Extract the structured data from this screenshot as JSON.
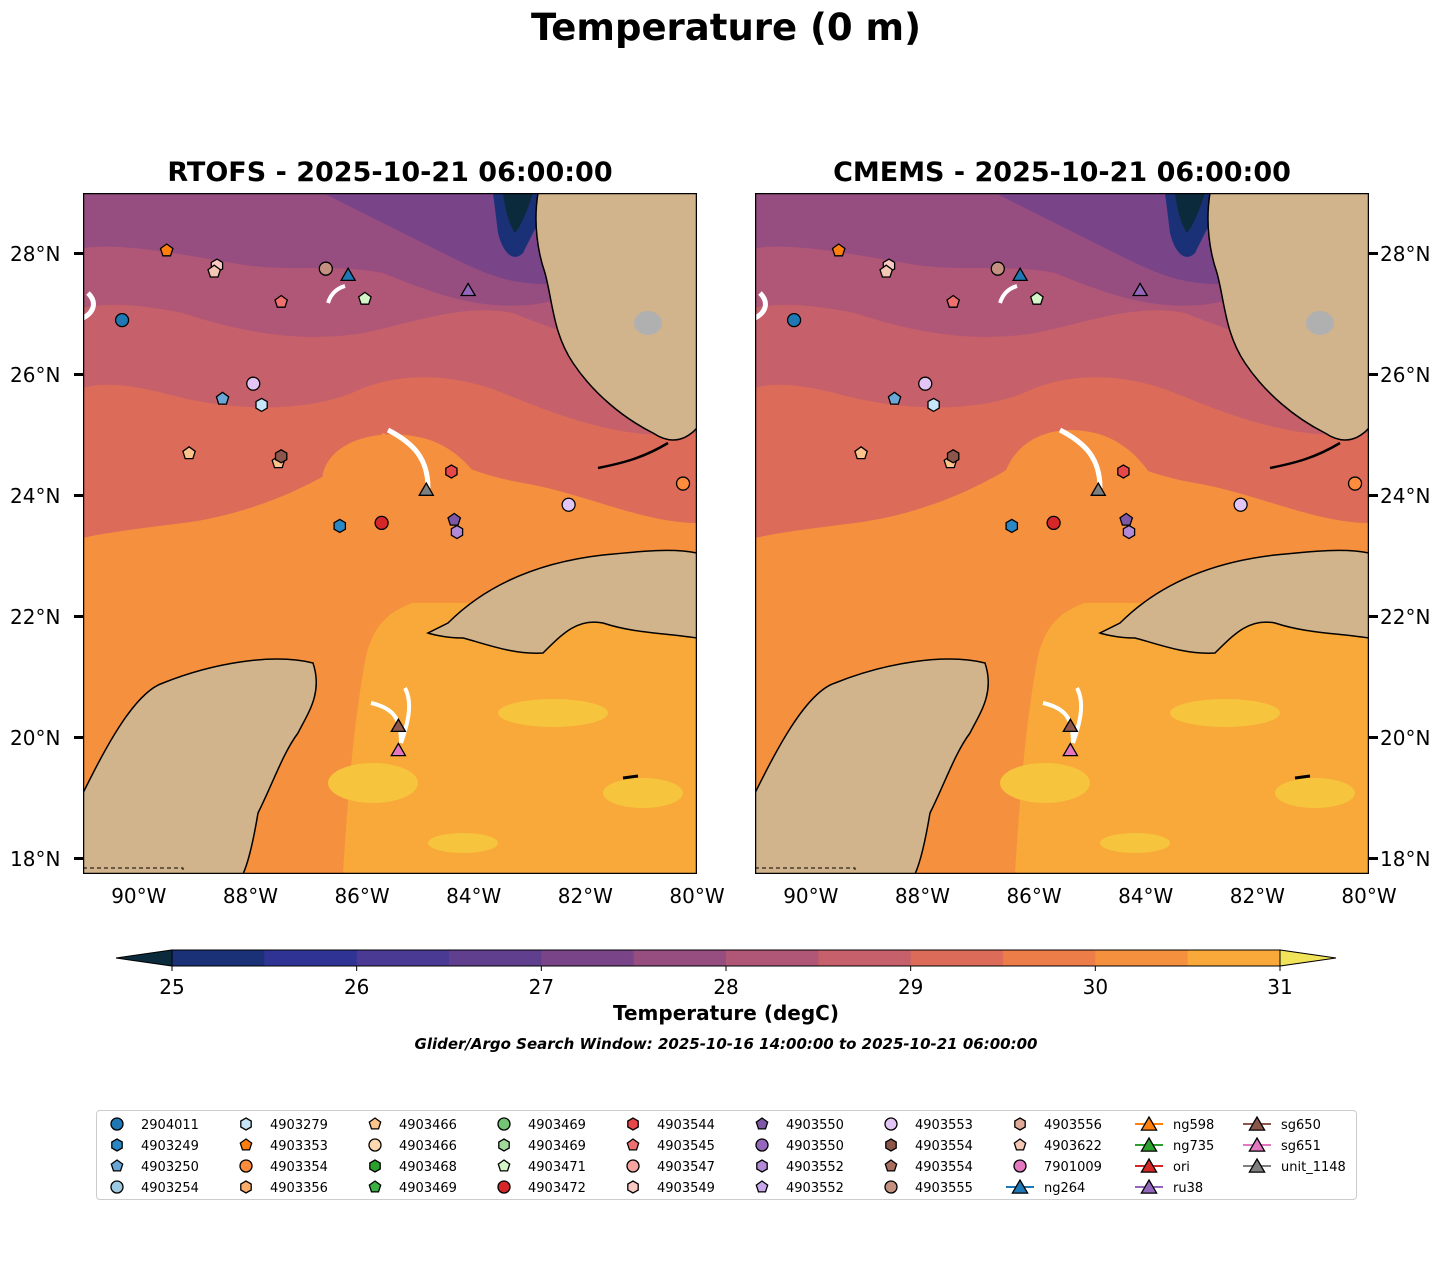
{
  "figure": {
    "title": "Temperature (0 m)",
    "search_window": "Glider/Argo Search Window: 2025-10-16 14:00:00 to 2025-10-21 06:00:00"
  },
  "panels": [
    {
      "title": "RTOFS - 2025-10-21 06:00:00",
      "source": "RTOFS"
    },
    {
      "title": "CMEMS - 2025-10-21 06:00:00",
      "source": "CMEMS"
    }
  ],
  "axes": {
    "lon_ticks": [
      "90°W",
      "88°W",
      "86°W",
      "84°W",
      "82°W",
      "80°W"
    ],
    "lat_ticks": [
      "28°N",
      "26°N",
      "24°N",
      "22°N",
      "20°N",
      "18°N"
    ]
  },
  "colorbar": {
    "label": "Temperature (degC)",
    "ticks": [
      "25",
      "26",
      "27",
      "28",
      "29",
      "30",
      "31"
    ],
    "min": 25,
    "max": 31,
    "step": 0.5,
    "colors": [
      "#0b2a3c",
      "#1b3177",
      "#2e3394",
      "#4a3a94",
      "#613f8f",
      "#7a4588",
      "#964d80",
      "#b05677",
      "#c6606a",
      "#dd6b5a",
      "#ec7c48",
      "#f5913e",
      "#f8a93a",
      "#f6c43d",
      "#f1e45a"
    ]
  },
  "chart_data": {
    "type": "map",
    "title": "Temperature (0 m)",
    "region": {
      "lon_range": [
        -91.0,
        -80.0
      ],
      "lat_range": [
        17.75,
        29.0
      ]
    },
    "variable": "sea surface temperature",
    "units": "degC",
    "platforms": [
      {
        "id": "2904011",
        "lon": -90.3,
        "lat": 26.9
      },
      {
        "id": "4903249",
        "lon": -86.4,
        "lat": 23.5
      },
      {
        "id": "4903250",
        "lon": -88.5,
        "lat": 25.6
      },
      {
        "id": "4903279",
        "lon": -87.8,
        "lat": 25.5
      },
      {
        "id": "4903353",
        "lon": -89.5,
        "lat": 28.05
      },
      {
        "id": "4903354",
        "lon": -80.25,
        "lat": 24.2
      },
      {
        "id": "4903466",
        "lon": -89.1,
        "lat": 24.7
      },
      {
        "id": "4903466",
        "lon": -87.5,
        "lat": 24.55
      },
      {
        "id": "4903472",
        "lon": -85.65,
        "lat": 23.55
      },
      {
        "id": "4903544",
        "lon": -84.4,
        "lat": 24.4
      },
      {
        "id": "4903545",
        "lon": -87.45,
        "lat": 27.2
      },
      {
        "id": "4903549",
        "lon": -88.6,
        "lat": 27.8
      },
      {
        "id": "4903550",
        "lon": -84.35,
        "lat": 23.6
      },
      {
        "id": "4903552",
        "lon": -84.3,
        "lat": 23.4
      },
      {
        "id": "4903553",
        "lon": -87.95,
        "lat": 25.85
      },
      {
        "id": "4903553",
        "lon": -82.3,
        "lat": 23.85
      },
      {
        "id": "4903554",
        "lon": -87.45,
        "lat": 24.65
      },
      {
        "id": "4903555",
        "lon": -86.65,
        "lat": 27.75
      },
      {
        "id": "4903622",
        "lon": -88.65,
        "lat": 27.7
      },
      {
        "id": "4903471",
        "lon": -85.95,
        "lat": 27.25
      },
      {
        "id": "ng264",
        "lon": -86.25,
        "lat": 27.65
      },
      {
        "id": "ru38",
        "lon": -84.1,
        "lat": 27.4
      },
      {
        "id": "unit_1148",
        "lon": -84.85,
        "lat": 24.1
      },
      {
        "id": "sg650",
        "lon": -85.35,
        "lat": 20.2
      },
      {
        "id": "sg651",
        "lon": -85.35,
        "lat": 19.8
      }
    ]
  },
  "legend": {
    "columns": [
      [
        {
          "label": "2904011",
          "shape": "circle",
          "color": "#1f77b4"
        },
        {
          "label": "4903249",
          "shape": "hexagon",
          "color": "#2b86c4"
        },
        {
          "label": "4903250",
          "shape": "pentagon",
          "color": "#6aa7d6"
        },
        {
          "label": "4903254",
          "shape": "circle",
          "color": "#9ecae1"
        }
      ],
      [
        {
          "label": "4903279",
          "shape": "hexagon",
          "color": "#c6e6f7"
        },
        {
          "label": "4903353",
          "shape": "pentagon",
          "color": "#ff7f0e"
        },
        {
          "label": "4903354",
          "shape": "circle",
          "color": "#fd8d3c"
        },
        {
          "label": "4903356",
          "shape": "hexagon",
          "color": "#fdae6b"
        }
      ],
      [
        {
          "label": "4903466",
          "shape": "pentagon",
          "color": "#fdc38d"
        },
        {
          "label": "4903466",
          "shape": "circle",
          "color": "#fdd9b0"
        },
        {
          "label": "4903468",
          "shape": "hexagon",
          "color": "#2ca02c"
        },
        {
          "label": "4903469",
          "shape": "pentagon",
          "color": "#3cb043"
        }
      ],
      [
        {
          "label": "4903469",
          "shape": "circle",
          "color": "#74c476"
        },
        {
          "label": "4903469",
          "shape": "hexagon",
          "color": "#a1d99b"
        },
        {
          "label": "4903471",
          "shape": "pentagon",
          "color": "#d4f5c8"
        },
        {
          "label": "4903472",
          "shape": "circle",
          "color": "#d62728"
        }
      ],
      [
        {
          "label": "4903544",
          "shape": "hexagon",
          "color": "#e8474a"
        },
        {
          "label": "4903545",
          "shape": "pentagon",
          "color": "#f0706f"
        },
        {
          "label": "4903547",
          "shape": "circle",
          "color": "#f7a3a0"
        },
        {
          "label": "4903549",
          "shape": "hexagon",
          "color": "#fbc9c4"
        }
      ],
      [
        {
          "label": "4903550",
          "shape": "pentagon",
          "color": "#7e57a6"
        },
        {
          "label": "4903550",
          "shape": "circle",
          "color": "#9467bd"
        },
        {
          "label": "4903552",
          "shape": "hexagon",
          "color": "#b28ad6"
        },
        {
          "label": "4903552",
          "shape": "pentagon",
          "color": "#c8a8ea"
        }
      ],
      [
        {
          "label": "4903553",
          "shape": "circle",
          "color": "#e3c5f5"
        },
        {
          "label": "4903554",
          "shape": "hexagon",
          "color": "#8c564b"
        },
        {
          "label": "4903554",
          "shape": "pentagon",
          "color": "#a86e5e"
        },
        {
          "label": "4903555",
          "shape": "circle",
          "color": "#c49180"
        }
      ],
      [
        {
          "label": "4903556",
          "shape": "hexagon",
          "color": "#dfaa96"
        },
        {
          "label": "4903622",
          "shape": "pentagon",
          "color": "#f5c8b5"
        },
        {
          "label": "7901009",
          "shape": "circle",
          "color": "#e377c2"
        },
        {
          "label": "ng264",
          "shape": "triangle-line",
          "color": "#1f77b4"
        }
      ],
      [
        {
          "label": "ng598",
          "shape": "triangle-line",
          "color": "#ff7f0e"
        },
        {
          "label": "ng735",
          "shape": "triangle-line",
          "color": "#2ca02c"
        },
        {
          "label": "ori",
          "shape": "triangle-line",
          "color": "#d62728"
        },
        {
          "label": "ru38",
          "shape": "triangle-line",
          "color": "#9467bd"
        }
      ],
      [
        {
          "label": "sg650",
          "shape": "triangle-line",
          "color": "#8c564b"
        },
        {
          "label": "sg651",
          "shape": "triangle-line",
          "color": "#e377c2"
        },
        {
          "label": "unit_1148",
          "shape": "triangle-line",
          "color": "#7f7f7f"
        }
      ]
    ]
  }
}
